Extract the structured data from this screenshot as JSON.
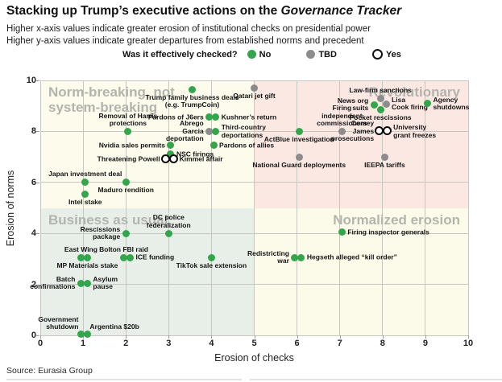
{
  "header": {
    "title_main": "Stacking up Trump’s executive actions on the ",
    "title_italic": "Governance Tracker",
    "subtitle": "Higher x-axis values indicate greater erosion of institutional checks on presidential power\nHigher y-axis values indicate greater departures from established norms and precedent"
  },
  "legend": {
    "question": "Was it effectively checked?",
    "items": [
      {
        "label": "No",
        "status": "no",
        "color": "#33a64c"
      },
      {
        "label": "TBD",
        "status": "tbd",
        "color": "#8c8c8c"
      },
      {
        "label": "Yes",
        "status": "yes",
        "color": "#ffffff"
      }
    ]
  },
  "source": "Source: Eurasia Group",
  "chart_data": {
    "type": "scatter",
    "title": "Stacking up Trump's executive actions on the Governance Tracker",
    "xlabel": "Erosion of checks",
    "ylabel": "Erosion of norms",
    "xlim": [
      0,
      10
    ],
    "ylim": [
      0,
      10
    ],
    "x_ticks": [
      0,
      1,
      2,
      3,
      4,
      5,
      6,
      7,
      8,
      9,
      10
    ],
    "y_ticks": [
      0,
      2,
      4,
      6,
      8,
      10
    ],
    "grid": true,
    "legend_position": "top",
    "status_colors": {
      "no": "#33a64c",
      "tbd": "#8c8c8c",
      "yes": "#ffffff"
    },
    "quadrants": [
      {
        "name": "norm-breaking",
        "label": "Norm-breaking, not\nsystem-breaking",
        "x_range": [
          0,
          5
        ],
        "y_range": [
          5,
          10
        ],
        "bg": "#fcfbec",
        "pos": "top-left"
      },
      {
        "name": "revolutionary",
        "label": "Revolutionary",
        "x_range": [
          5,
          10
        ],
        "y_range": [
          5,
          10
        ],
        "bg": "#fbe8e3",
        "pos": "top-right"
      },
      {
        "name": "business-as-usual",
        "label": "Business as usual",
        "x_range": [
          0,
          5
        ],
        "y_range": [
          0,
          5
        ],
        "bg": "#e8efe9",
        "pos": "mid-left"
      },
      {
        "name": "normalized-erosion",
        "label": "Normalized erosion",
        "x_range": [
          5,
          10
        ],
        "y_range": [
          0,
          5
        ],
        "bg": "#fcfbe9",
        "pos": "mid-right"
      }
    ],
    "points": [
      {
        "label": "Trump family business deals\n(e.g. TrumpCoin)",
        "x": 3.55,
        "y": 9.65,
        "status": "no",
        "label_pos": "below"
      },
      {
        "label": "Qatari jet gift",
        "x": 5.0,
        "y": 9.7,
        "status": "tbd",
        "label_pos": "below"
      },
      {
        "label": "Pardons of J6ers",
        "x": 3.95,
        "y": 8.55,
        "status": "no",
        "label_pos": "left"
      },
      {
        "label": "Kushner’s return",
        "x": 4.1,
        "y": 8.55,
        "status": "no",
        "label_pos": "right"
      },
      {
        "label": "Removal of Harris protections",
        "x": 2.05,
        "y": 8.0,
        "status": "no",
        "label_pos": "above"
      },
      {
        "label": "Abrego\nGarcia\ndeportation",
        "x": 3.95,
        "y": 8.0,
        "status": "tbd",
        "label_pos": "left"
      },
      {
        "label": "Third-country\ndeportations",
        "x": 4.1,
        "y": 8.0,
        "status": "no",
        "label_pos": "right"
      },
      {
        "label": "Nvidia sales permits",
        "x": 3.05,
        "y": 7.45,
        "status": "no",
        "label_pos": "left"
      },
      {
        "label": "Pardons of allies",
        "x": 4.05,
        "y": 7.45,
        "status": "no",
        "label_pos": "right"
      },
      {
        "label": "NSC firings",
        "x": 3.05,
        "y": 7.1,
        "status": "no",
        "label_pos": "right"
      },
      {
        "label": "Threatening Powell",
        "x": 2.93,
        "y": 6.9,
        "status": "yes",
        "label_pos": "left"
      },
      {
        "label": "Kimmel affair",
        "x": 3.12,
        "y": 6.9,
        "status": "yes",
        "label_pos": "right"
      },
      {
        "label": "Japan investment deal",
        "x": 1.05,
        "y": 6.0,
        "status": "no",
        "label_pos": "above"
      },
      {
        "label": "Maduro rendition",
        "x": 2.0,
        "y": 6.0,
        "status": "no",
        "label_pos": "below"
      },
      {
        "label": "Intel stake",
        "x": 1.05,
        "y": 5.55,
        "status": "no",
        "label_pos": "below"
      },
      {
        "label": "Rescissions\npackage",
        "x": 2.0,
        "y": 4.0,
        "status": "no",
        "label_pos": "left"
      },
      {
        "label": "DC police\nfederalization",
        "x": 3.0,
        "y": 4.0,
        "status": "no",
        "label_pos": "above"
      },
      {
        "label": "East Wing",
        "x": 0.95,
        "y": 3.05,
        "status": "no",
        "label_pos": "above"
      },
      {
        "label": "MP Materials stake",
        "x": 1.1,
        "y": 3.05,
        "status": "no",
        "label_pos": "below"
      },
      {
        "label": "Bolton FBI raid",
        "x": 1.95,
        "y": 3.05,
        "status": "no",
        "label_pos": "above"
      },
      {
        "label": "ICE funding",
        "x": 2.1,
        "y": 3.05,
        "status": "no",
        "label_pos": "right"
      },
      {
        "label": "TikTok sale extension",
        "x": 4.0,
        "y": 3.05,
        "status": "no",
        "label_pos": "below"
      },
      {
        "label": "Batch\nconfirmations",
        "x": 0.95,
        "y": 2.05,
        "status": "no",
        "label_pos": "left"
      },
      {
        "label": "Asylum\npause",
        "x": 1.1,
        "y": 2.05,
        "status": "no",
        "label_pos": "right"
      },
      {
        "label": "Government\nshutdown",
        "x": 0.95,
        "y": 0.05,
        "status": "no",
        "label_pos": "above-left"
      },
      {
        "label": "Argentina $20b",
        "x": 1.1,
        "y": 0.05,
        "status": "no",
        "label_pos": "above-right"
      },
      {
        "label": "Law-firm sanctions",
        "x": 7.95,
        "y": 9.3,
        "status": "tbd",
        "label_pos": "above"
      },
      {
        "label": "News org\nsuits",
        "x": 7.8,
        "y": 9.05,
        "status": "no",
        "label_pos": "left"
      },
      {
        "label": "Lisa\nCook firing",
        "x": 8.08,
        "y": 9.08,
        "status": "tbd",
        "label_pos": "right"
      },
      {
        "label": "Pocket rescissions",
        "x": 7.95,
        "y": 8.85,
        "status": "no",
        "label_pos": "below"
      },
      {
        "label": "Agency\nshutdowns",
        "x": 9.05,
        "y": 9.1,
        "status": "no",
        "label_pos": "right"
      },
      {
        "label": "Firing\nindependent\ncommissioners",
        "x": 7.05,
        "y": 8.0,
        "status": "tbd",
        "label_pos": "above"
      },
      {
        "label": "ActBlue investigation",
        "x": 6.05,
        "y": 8.0,
        "status": "no",
        "label_pos": "below"
      },
      {
        "label": "Comey\nJames\nprosecutions",
        "x": 7.93,
        "y": 8.0,
        "status": "yes",
        "label_pos": "left"
      },
      {
        "label": "University\ngrant freezes",
        "x": 8.12,
        "y": 8.0,
        "status": "yes",
        "label_pos": "right"
      },
      {
        "label": "National Guard deployments",
        "x": 6.05,
        "y": 7.0,
        "status": "tbd",
        "label_pos": "below"
      },
      {
        "label": "IEEPA tariffs",
        "x": 8.05,
        "y": 7.0,
        "status": "tbd",
        "label_pos": "below"
      },
      {
        "label": "Firing inspector generals",
        "x": 7.05,
        "y": 4.05,
        "status": "no",
        "label_pos": "right"
      },
      {
        "label": "Redistricting\nwar",
        "x": 5.95,
        "y": 3.05,
        "status": "no",
        "label_pos": "left"
      },
      {
        "label": "Hegseth alleged “kill order”",
        "x": 6.1,
        "y": 3.05,
        "status": "no",
        "label_pos": "right"
      }
    ]
  }
}
